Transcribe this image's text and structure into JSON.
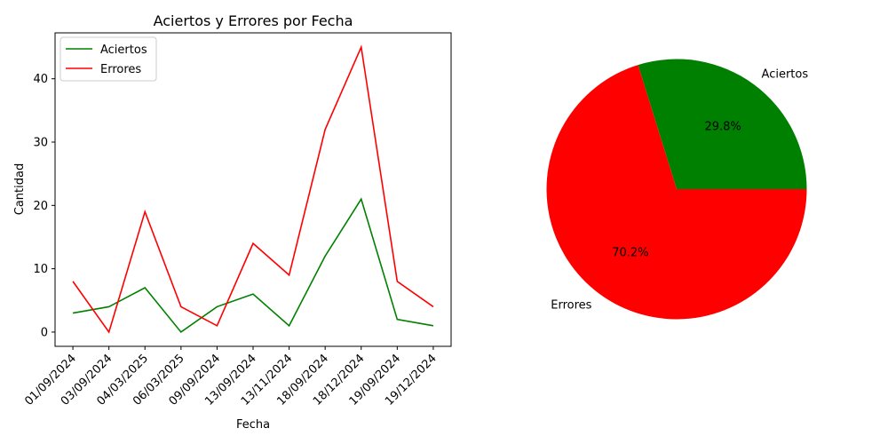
{
  "chart_data": [
    {
      "type": "line",
      "title": "Aciertos y Errores por Fecha",
      "xlabel": "Fecha",
      "ylabel": "Cantidad",
      "categories": [
        "01/09/2024",
        "03/09/2024",
        "04/03/2025",
        "06/03/2025",
        "09/09/2024",
        "13/09/2024",
        "13/11/2024",
        "18/09/2024",
        "18/12/2024",
        "19/09/2024",
        "19/12/2024"
      ],
      "series": [
        {
          "name": "Aciertos",
          "color": "#008000",
          "values": [
            3,
            4,
            7,
            0,
            4,
            6,
            1,
            12,
            21,
            2,
            1
          ]
        },
        {
          "name": "Errores",
          "color": "#ff0000",
          "values": [
            8,
            0,
            19,
            4,
            1,
            14,
            9,
            32,
            45,
            8,
            4
          ]
        }
      ],
      "yticks": [
        0,
        10,
        20,
        30,
        40
      ],
      "ylim": [
        -2.25,
        47.25
      ],
      "legend": "top-left",
      "grid": false
    },
    {
      "type": "pie",
      "slices": [
        {
          "label": "Aciertos",
          "value": 29.8,
          "pct_label": "29.8%",
          "color": "#008000"
        },
        {
          "label": "Errores",
          "value": 70.2,
          "pct_label": "70.2%",
          "color": "#ff0000"
        }
      ]
    }
  ]
}
